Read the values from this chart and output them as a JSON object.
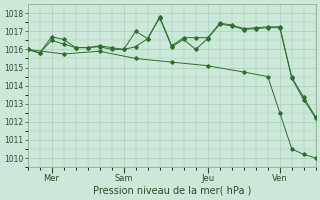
{
  "title": "Pression niveau de la mer( hPa )",
  "bg_color": "#cce8d8",
  "grid_color": "#aacfba",
  "line_color": "#2d6e2d",
  "ylim": [
    1009.5,
    1018.5
  ],
  "yticks": [
    1010,
    1011,
    1012,
    1013,
    1014,
    1015,
    1016,
    1017,
    1018
  ],
  "xlim": [
    0,
    96
  ],
  "day_labels": [
    "Mer",
    "Sam",
    "Jeu",
    "Ven"
  ],
  "day_positions": [
    8,
    32,
    60,
    84
  ],
  "s1_x": [
    0,
    4,
    8,
    12,
    16,
    20,
    24,
    28,
    32,
    36,
    40,
    44,
    48,
    52,
    56,
    60,
    64,
    68,
    72,
    76,
    80,
    84,
    88,
    92,
    96
  ],
  "s1_y": [
    1016.0,
    1015.8,
    1016.7,
    1016.55,
    1016.1,
    1016.1,
    1016.2,
    1016.1,
    1016.0,
    1017.0,
    1016.6,
    1017.8,
    1016.2,
    1016.65,
    1016.65,
    1016.65,
    1017.45,
    1017.35,
    1017.15,
    1017.2,
    1017.25,
    1017.25,
    1014.45,
    1013.35,
    1012.25
  ],
  "s2_x": [
    0,
    4,
    8,
    12,
    16,
    20,
    24,
    28,
    32,
    36,
    40,
    44,
    48,
    52,
    56,
    60,
    64,
    68,
    72,
    76,
    80,
    84,
    88,
    92,
    96
  ],
  "s2_y": [
    1016.0,
    1015.8,
    1016.5,
    1016.3,
    1016.1,
    1016.1,
    1016.15,
    1016.0,
    1016.0,
    1016.15,
    1016.6,
    1017.75,
    1016.15,
    1016.55,
    1016.0,
    1016.6,
    1017.4,
    1017.3,
    1017.1,
    1017.15,
    1017.2,
    1017.2,
    1014.4,
    1013.2,
    1012.2
  ],
  "s3_x": [
    0,
    12,
    24,
    36,
    48,
    60,
    72,
    80,
    84,
    88,
    92,
    96
  ],
  "s3_y": [
    1016.0,
    1015.75,
    1015.9,
    1015.5,
    1015.3,
    1015.1,
    1014.75,
    1014.5,
    1012.5,
    1010.5,
    1010.2,
    1010.0
  ]
}
